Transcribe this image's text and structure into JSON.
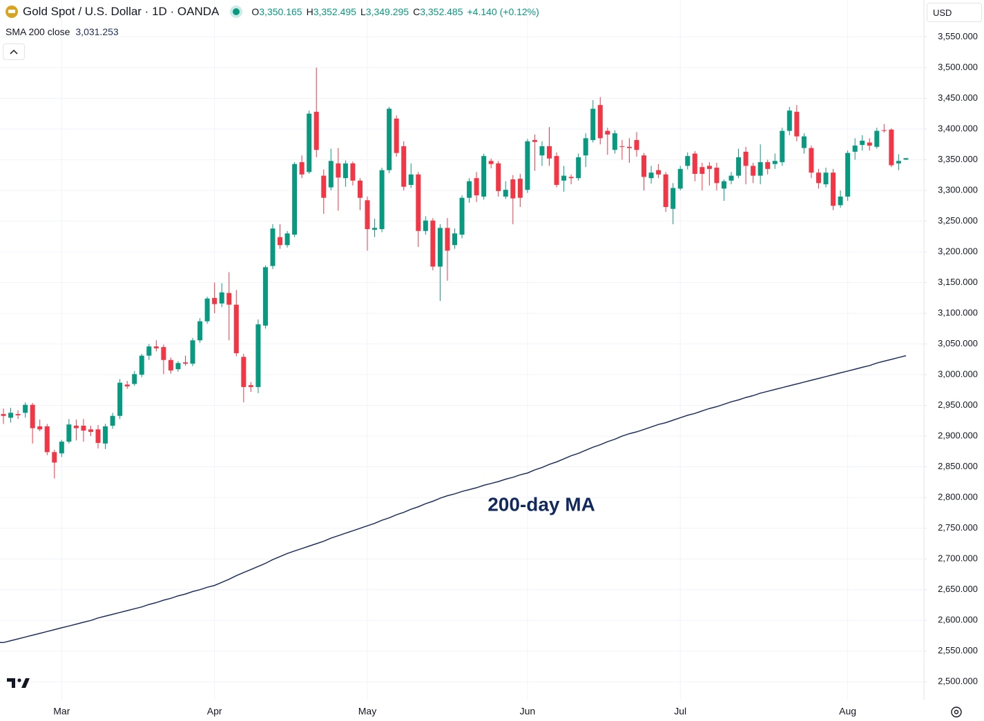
{
  "chart_data": {
    "type": "candlestick",
    "title": "Gold Spot / U.S. Dollar · 1D · OANDA",
    "ohlc_legend": [
      {
        "key": "O",
        "text": "3,350.165"
      },
      {
        "key": "H",
        "text": "3,352.495"
      },
      {
        "key": "L",
        "text": "3,349.295"
      },
      {
        "key": "C",
        "text": "3,352.485"
      }
    ],
    "change": "+4.140 (+0.12%)",
    "currency": "USD",
    "annotation": "200-day MA",
    "up_color": "#089981",
    "down_color": "#f23645",
    "grid": true,
    "categories": [
      null,
      null,
      null,
      null,
      null,
      null,
      null,
      null,
      "Mar",
      null,
      null,
      null,
      null,
      null,
      null,
      null,
      null,
      null,
      null,
      null,
      null,
      null,
      null,
      null,
      null,
      null,
      null,
      null,
      null,
      "Apr",
      null,
      null,
      null,
      null,
      null,
      null,
      null,
      null,
      null,
      null,
      null,
      null,
      null,
      null,
      null,
      null,
      null,
      null,
      null,
      null,
      "May",
      null,
      null,
      null,
      null,
      null,
      null,
      null,
      null,
      null,
      null,
      null,
      null,
      null,
      null,
      null,
      null,
      null,
      null,
      null,
      null,
      null,
      "Jun",
      null,
      null,
      null,
      null,
      null,
      null,
      null,
      null,
      null,
      null,
      null,
      null,
      null,
      null,
      null,
      null,
      null,
      null,
      null,
      null,
      "Jul",
      null,
      null,
      null,
      null,
      null,
      null,
      null,
      null,
      null,
      null,
      null,
      null,
      null,
      null,
      null,
      null,
      null,
      null,
      null,
      null,
      null,
      null,
      "Aug",
      null,
      null,
      null,
      null,
      null,
      null,
      null,
      null
    ],
    "open": [
      2936,
      2930,
      2936,
      2938,
      2951,
      2916,
      2916,
      2874,
      2872,
      2891,
      2917,
      2917,
      2911,
      2911,
      2888,
      2917,
      2933,
      2984,
      2985,
      3000,
      3031,
      3046,
      3045,
      3024,
      3009,
      3020,
      3018,
      3056,
      3087,
      3125,
      3116,
      3133,
      3114,
      3029,
      2983,
      2980,
      3080,
      3177,
      3224,
      3211,
      3228,
      3346,
      3330,
      3428,
      3324,
      3305,
      3344,
      3320,
      3344,
      3316,
      3284,
      3236,
      3237,
      3333,
      3417,
      3372,
      3309,
      3326,
      3234,
      3251,
      3176,
      3239,
      3211,
      3228,
      3288,
      3320,
      3290,
      3348,
      3344,
      3290,
      3318,
      3319,
      3301,
      3382,
      3357,
      3372,
      3356,
      3316,
      3322,
      3320,
      3357,
      3382,
      3439,
      3397,
      3366,
      3372,
      3371,
      3382,
      3357,
      3320,
      3333,
      3326,
      3270,
      3303,
      3340,
      3360,
      3338,
      3340,
      3337,
      3303,
      3316,
      3324,
      3363,
      3340,
      3324,
      3346,
      3343,
      3346,
      3397,
      3428,
      3369,
      3369,
      3329,
      3310,
      3329,
      3276,
      3290,
      3363,
      3374,
      3378,
      3371,
      3398,
      3399,
      3344,
      3350.165
    ],
    "high": [
      2945,
      2946,
      2942,
      2955,
      2954,
      2927,
      2920,
      2878,
      2894,
      2928,
      2927,
      2928,
      2917,
      2918,
      2920,
      2938,
      2993,
      2990,
      3006,
      3034,
      3050,
      3056,
      3049,
      3028,
      3022,
      3031,
      3060,
      3092,
      3127,
      3150,
      3149,
      3167,
      3138,
      3034,
      2988,
      3090,
      3178,
      3245,
      3245,
      3234,
      3346,
      3357,
      3430,
      3500,
      3334,
      3368,
      3369,
      3349,
      3347,
      3320,
      3290,
      3254,
      3337,
      3436,
      3422,
      3380,
      3344,
      3330,
      3258,
      3255,
      3245,
      3255,
      3238,
      3292,
      3320,
      3330,
      3360,
      3352,
      3348,
      3315,
      3325,
      3327,
      3384,
      3391,
      3380,
      3403,
      3362,
      3340,
      3326,
      3360,
      3393,
      3447,
      3452,
      3402,
      3398,
      3382,
      3385,
      3395,
      3361,
      3340,
      3343,
      3330,
      3312,
      3340,
      3362,
      3364,
      3345,
      3346,
      3345,
      3318,
      3330,
      3368,
      3371,
      3345,
      3375,
      3350,
      3360,
      3402,
      3436,
      3439,
      3393,
      3373,
      3335,
      3337,
      3335,
      3300,
      3365,
      3385,
      3390,
      3385,
      3402,
      3408,
      3401,
      3359,
      3352.495
    ],
    "low": [
      2920,
      2922,
      2928,
      2930,
      2888,
      2908,
      2869,
      2831,
      2866,
      2888,
      2893,
      2891,
      2900,
      2880,
      2879,
      2912,
      2928,
      2977,
      2982,
      2996,
      3024,
      3038,
      3001,
      3002,
      3005,
      3015,
      3014,
      3052,
      3083,
      3100,
      3110,
      3056,
      3030,
      2955,
      2972,
      2970,
      3075,
      3172,
      3205,
      3207,
      3224,
      3320,
      3327,
      3354,
      3262,
      3300,
      3267,
      3306,
      3308,
      3268,
      3202,
      3224,
      3232,
      3328,
      3355,
      3300,
      3304,
      3208,
      3228,
      3170,
      3120,
      3153,
      3205,
      3222,
      3280,
      3281,
      3285,
      3336,
      3290,
      3286,
      3245,
      3273,
      3296,
      3332,
      3340,
      3340,
      3305,
      3298,
      3310,
      3316,
      3338,
      3378,
      3375,
      3358,
      3360,
      3350,
      3345,
      3355,
      3300,
      3311,
      3320,
      3265,
      3245,
      3300,
      3334,
      3315,
      3300,
      3308,
      3300,
      3283,
      3310,
      3320,
      3310,
      3312,
      3310,
      3326,
      3335,
      3340,
      3390,
      3380,
      3360,
      3320,
      3303,
      3305,
      3268,
      3272,
      3283,
      3350,
      3365,
      3365,
      3368,
      3394,
      3338,
      3333,
      3349.295
    ],
    "close": [
      2933,
      2938,
      2934,
      2951,
      2913,
      2911,
      2874,
      2857,
      2891,
      2919,
      2913,
      2909,
      2907,
      2889,
      2916,
      2933,
      2987,
      2981,
      3001,
      3031,
      3046,
      3043,
      3024,
      3007,
      3019,
      3018,
      3056,
      3087,
      3124,
      3115,
      3134,
      3114,
      3035,
      2980,
      2980,
      3082,
      3175,
      3238,
      3211,
      3230,
      3343,
      3326,
      3425,
      3366,
      3288,
      3348,
      3321,
      3344,
      3316,
      3288,
      3237,
      3239,
      3333,
      3433,
      3361,
      3306,
      3326,
      3234,
      3251,
      3176,
      3239,
      3202,
      3230,
      3288,
      3315,
      3292,
      3356,
      3343,
      3299,
      3301,
      3287,
      3288,
      3380,
      3379,
      3372,
      3352,
      3309,
      3324,
      3320,
      3354,
      3385,
      3433,
      3385,
      3391,
      3393,
      3371,
      3369,
      3366,
      3322,
      3329,
      3326,
      3273,
      3304,
      3335,
      3356,
      3327,
      3327,
      3335,
      3312,
      3315,
      3324,
      3354,
      3340,
      3324,
      3346,
      3335,
      3348,
      3397,
      3430,
      3388,
      3388,
      3329,
      3312,
      3329,
      3275,
      3290,
      3361,
      3373,
      3381,
      3373,
      3397,
      3397,
      3341,
      3348,
      3352.485
    ],
    "sma": {
      "name": "SMA 200 close",
      "value_label": "3,031.253",
      "color": "#1e2f5e",
      "values": [
        2564,
        2567,
        2570,
        2573,
        2576,
        2579,
        2582,
        2585,
        2588,
        2591,
        2594,
        2597,
        2600,
        2604,
        2607,
        2610,
        2613,
        2616,
        2619,
        2622,
        2626,
        2629,
        2633,
        2636,
        2640,
        2643,
        2647,
        2650,
        2654,
        2657,
        2662,
        2667,
        2673,
        2678,
        2683,
        2688,
        2693,
        2699,
        2704,
        2709,
        2713,
        2717,
        2721,
        2725,
        2729,
        2734,
        2738,
        2742,
        2746,
        2750,
        2754,
        2758,
        2763,
        2767,
        2772,
        2776,
        2781,
        2785,
        2790,
        2794,
        2799,
        2803,
        2806,
        2810,
        2813,
        2816,
        2820,
        2823,
        2826,
        2830,
        2833,
        2837,
        2840,
        2845,
        2849,
        2854,
        2858,
        2863,
        2868,
        2872,
        2877,
        2882,
        2886,
        2891,
        2895,
        2900,
        2904,
        2907,
        2911,
        2915,
        2919,
        2922,
        2926,
        2930,
        2934,
        2937,
        2941,
        2945,
        2948,
        2952,
        2956,
        2959,
        2963,
        2966,
        2970,
        2973,
        2976,
        2979,
        2982,
        2985,
        2988,
        2991,
        2994,
        2997,
        3000,
        3003,
        3006,
        3009,
        3012,
        3015,
        3019,
        3022,
        3025,
        3028,
        3031
      ]
    },
    "ylim": [
      2470,
      3610
    ],
    "yticks": [
      {
        "value": 2500,
        "label": "2,500.000"
      },
      {
        "value": 2550,
        "label": "2,550.000"
      },
      {
        "value": 2600,
        "label": "2,600.000"
      },
      {
        "value": 2650,
        "label": "2,650.000"
      },
      {
        "value": 2700,
        "label": "2,700.000"
      },
      {
        "value": 2750,
        "label": "2,750.000"
      },
      {
        "value": 2800,
        "label": "2,800.000"
      },
      {
        "value": 2850,
        "label": "2,850.000"
      },
      {
        "value": 2900,
        "label": "2,900.000"
      },
      {
        "value": 2950,
        "label": "2,950.000"
      },
      {
        "value": 3000,
        "label": "3,000.000"
      },
      {
        "value": 3050,
        "label": "3,050.000"
      },
      {
        "value": 3100,
        "label": "3,100.000"
      },
      {
        "value": 3150,
        "label": "3,150.000"
      },
      {
        "value": 3200,
        "label": "3,200.000"
      },
      {
        "value": 3250,
        "label": "3,250.000"
      },
      {
        "value": 3300,
        "label": "3,300.000"
      },
      {
        "value": 3350,
        "label": "3,350.000"
      },
      {
        "value": 3400,
        "label": "3,400.000"
      },
      {
        "value": 3450,
        "label": "3,450.000"
      },
      {
        "value": 3500,
        "label": "3,500.000"
      },
      {
        "value": 3550,
        "label": "3,550.000"
      }
    ]
  }
}
